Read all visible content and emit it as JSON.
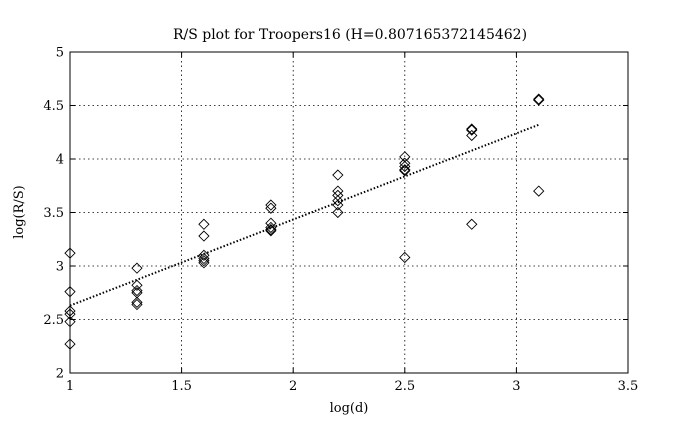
{
  "chart_data": {
    "type": "scatter",
    "title": "R/S plot for Troopers16 (H=0.807165372145462)",
    "xlabel": "log(d)",
    "ylabel": "log(R/S)",
    "xlim": [
      1,
      3.5
    ],
    "ylim": [
      2,
      5
    ],
    "xticks": [
      "1",
      "1.5",
      "2",
      "2.5",
      "3",
      "3.5"
    ],
    "yticks": [
      "2",
      "2.5",
      "3",
      "3.5",
      "4",
      "4.5",
      "5"
    ],
    "grid": true,
    "marker": "diamond",
    "points": [
      [
        1.0,
        3.12
      ],
      [
        1.0,
        2.76
      ],
      [
        1.0,
        2.58
      ],
      [
        1.0,
        2.55
      ],
      [
        1.0,
        2.48
      ],
      [
        1.0,
        2.27
      ],
      [
        1.3,
        2.98
      ],
      [
        1.3,
        2.82
      ],
      [
        1.3,
        2.77
      ],
      [
        1.3,
        2.75
      ],
      [
        1.3,
        2.66
      ],
      [
        1.3,
        2.64
      ],
      [
        1.6,
        3.39
      ],
      [
        1.6,
        3.28
      ],
      [
        1.6,
        3.1
      ],
      [
        1.6,
        3.07
      ],
      [
        1.6,
        3.05
      ],
      [
        1.6,
        3.03
      ],
      [
        1.9,
        3.57
      ],
      [
        1.9,
        3.54
      ],
      [
        1.9,
        3.4
      ],
      [
        1.9,
        3.36
      ],
      [
        1.9,
        3.34
      ],
      [
        1.9,
        3.33
      ],
      [
        2.2,
        3.85
      ],
      [
        2.2,
        3.7
      ],
      [
        2.2,
        3.66
      ],
      [
        2.2,
        3.61
      ],
      [
        2.2,
        3.57
      ],
      [
        2.2,
        3.5
      ],
      [
        2.5,
        4.02
      ],
      [
        2.5,
        3.96
      ],
      [
        2.5,
        3.93
      ],
      [
        2.5,
        3.9
      ],
      [
        2.5,
        3.89
      ],
      [
        2.5,
        3.08
      ],
      [
        2.8,
        4.28
      ],
      [
        2.8,
        4.27
      ],
      [
        2.8,
        4.22
      ],
      [
        2.8,
        3.39
      ],
      [
        3.1,
        4.56
      ],
      [
        3.1,
        4.55
      ],
      [
        3.1,
        3.7
      ]
    ],
    "fit_line": {
      "x": [
        1.0,
        3.1
      ],
      "y": [
        2.63,
        4.32
      ]
    }
  }
}
